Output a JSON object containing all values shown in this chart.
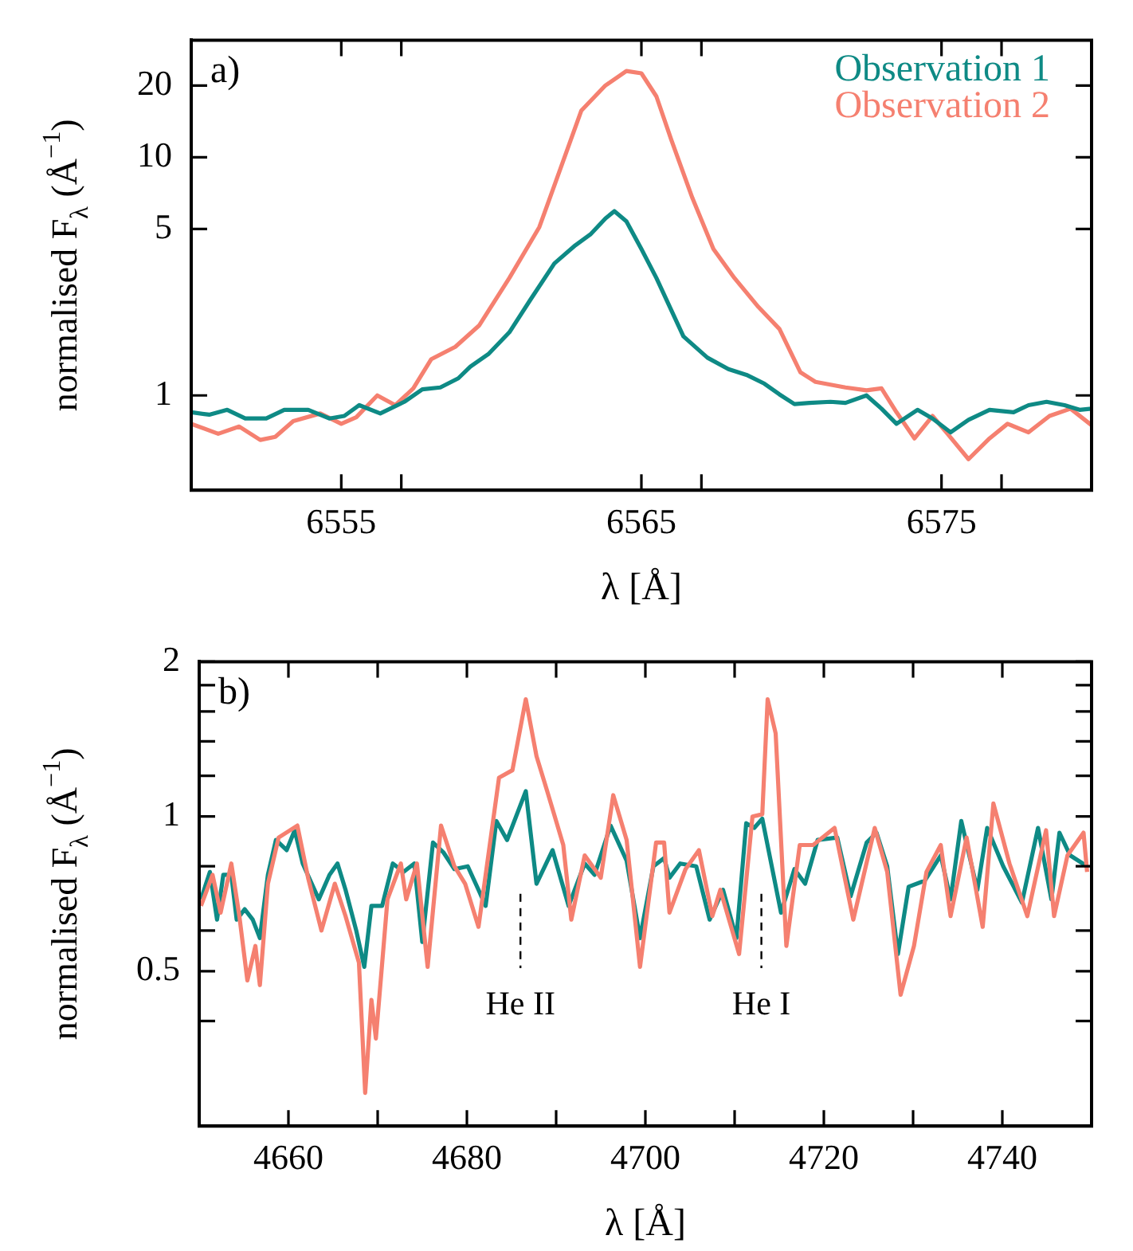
{
  "chart_data": [
    {
      "type": "line",
      "xlabel": "λ [Å]",
      "ylabel": "normalised F$_{λ}$ (Å$^{−1}$)",
      "log": true,
      "legend": "top right",
      "annotations": [
        "a)"
      ],
      "xlim": [
        6550,
        6580
      ],
      "xticks": [
        6555,
        {
          "value": 6557,
          "label": null
        },
        6565,
        {
          "value": 6567,
          "label": null
        },
        6575,
        {
          "value": 6577,
          "label": null
        }
      ],
      "ylim": [
        0.4,
        31
      ],
      "yticks": [
        1,
        5,
        10,
        20
      ],
      "series": [
        {
          "name": "Observation 1",
          "color": "#0e8a85",
          "x": [
            6550,
            6550.6,
            6551.2,
            6551.8,
            6552.5,
            6553.1,
            6553.9,
            6554.6,
            6555.1,
            6555.6,
            6556.3,
            6557.1,
            6557.7,
            6558.3,
            6558.9,
            6559.3,
            6559.9,
            6560.6,
            6561.3,
            6562.1,
            6562.8,
            6563.3,
            6563.8,
            6564.1,
            6564.5,
            6565,
            6565.5,
            6566.4,
            6567.2,
            6567.9,
            6568.5,
            6569.1,
            6569.6,
            6570.1,
            6570.6,
            6571.3,
            6571.8,
            6572.5,
            6573,
            6573.5,
            6574.2,
            6574.7,
            6575.3,
            6575.9,
            6576.6,
            6577.4,
            6577.9,
            6578.5,
            6579.1,
            6579.6,
            6580
          ],
          "values": [
            0.85,
            0.83,
            0.87,
            0.8,
            0.8,
            0.87,
            0.87,
            0.8,
            0.82,
            0.91,
            0.84,
            0.94,
            1.06,
            1.08,
            1.18,
            1.32,
            1.49,
            1.84,
            2.52,
            3.58,
            4.27,
            4.74,
            5.53,
            5.94,
            5.38,
            4.12,
            3.11,
            1.77,
            1.44,
            1.29,
            1.22,
            1.12,
            1.01,
            0.92,
            0.93,
            0.94,
            0.93,
            1.0,
            0.88,
            0.76,
            0.87,
            0.8,
            0.7,
            0.79,
            0.87,
            0.85,
            0.91,
            0.94,
            0.91,
            0.87,
            0.88
          ]
        },
        {
          "name": "Observation 2",
          "color": "#f58070",
          "x": [
            6550,
            6550.9,
            6551.6,
            6552.3,
            6552.8,
            6553.4,
            6554.3,
            6555,
            6555.5,
            6556.2,
            6556.8,
            6557.4,
            6558,
            6558.8,
            6559.6,
            6560.6,
            6561.6,
            6562.3,
            6563,
            6563.8,
            6564.5,
            6565,
            6565.5,
            6566,
            6566.7,
            6567.4,
            6568.1,
            6568.9,
            6569.6,
            6570.3,
            6570.8,
            6571.8,
            6572.5,
            6573,
            6573.5,
            6574.1,
            6574.7,
            6575.2,
            6575.9,
            6576.6,
            6577.2,
            6577.9,
            6578.6,
            6579.3,
            6580
          ],
          "values": [
            0.76,
            0.69,
            0.74,
            0.65,
            0.67,
            0.78,
            0.84,
            0.76,
            0.81,
            1.0,
            0.91,
            1.07,
            1.42,
            1.6,
            1.97,
            3.11,
            5.09,
            8.93,
            15.7,
            20,
            23,
            22.5,
            18,
            11.8,
            6.74,
            4.12,
            3.11,
            2.35,
            1.9,
            1.25,
            1.14,
            1.08,
            1.05,
            1.07,
            0.85,
            0.66,
            0.82,
            0.69,
            0.54,
            0.66,
            0.76,
            0.7,
            0.82,
            0.88,
            0.75
          ]
        }
      ]
    },
    {
      "type": "line",
      "xlabel": "λ [Å]",
      "ylabel": "normalised F$_{λ}$ (Å$^{−1}$)",
      "log": true,
      "annotations": [
        "b)"
      ],
      "ref_lines": [
        {
          "axis": "x",
          "value": 4686,
          "label": "He II",
          "line_style": "dashed"
        },
        {
          "axis": "x",
          "value": 4713,
          "label": "He I",
          "line_style": "dashed"
        }
      ],
      "xlim": [
        4650,
        4750
      ],
      "xticks": [
        4660,
        {
          "value": 4670,
          "label": null
        },
        4680,
        {
          "value": 4690,
          "label": null
        },
        4700,
        {
          "value": 4710,
          "label": null
        },
        4720,
        {
          "value": 4730,
          "label": null
        },
        4740
      ],
      "ylim": [
        0.25,
        2
      ],
      "yticks": [
        {
          "value": 0.4,
          "label": null
        },
        0.5,
        {
          "value": 0.6,
          "label": null
        },
        {
          "value": 0.8,
          "label": null
        },
        1,
        {
          "value": 1.2,
          "label": null
        },
        {
          "value": 1.4,
          "label": null
        },
        {
          "value": 1.6,
          "label": null
        },
        {
          "value": 1.8,
          "label": null
        },
        2
      ],
      "series": [
        {
          "color": "#f58070",
          "x": [
            4650.2,
            4651.5,
            4652.4,
            4653.6,
            4654.5,
            4655.4,
            4656.3,
            4656.8,
            4657.7,
            4658.9,
            4661,
            4662.2,
            4663.7,
            4665.2,
            4666.4,
            4667.9,
            4668.6,
            4669.3,
            4669.8,
            4671.1,
            4672.6,
            4673.2,
            4674.4,
            4675.6,
            4677.1,
            4678.6,
            4679.8,
            4681.3,
            4683.6,
            4685.1,
            4686.6,
            4687.8,
            4689,
            4690.8,
            4691.7,
            4693.2,
            4695,
            4696.4,
            4697.9,
            4699.4,
            4701.2,
            4702.1,
            4702.7,
            4704.5,
            4706,
            4707.5,
            4708.4,
            4710.5,
            4712,
            4713.1,
            4713.7,
            4714.6,
            4715.8,
            4717.3,
            4718.8,
            4721.2,
            4723.3,
            4725.7,
            4727.1,
            4728.6,
            4730.1,
            4731.5,
            4733.1,
            4734.2,
            4736,
            4737.8,
            4739,
            4740.8,
            4742.8,
            4744.9,
            4745.8,
            4747.3,
            4749.1,
            4749.5
          ],
          "values": [
            0.67,
            0.77,
            0.65,
            0.81,
            0.64,
            0.48,
            0.56,
            0.47,
            0.74,
            0.91,
            0.96,
            0.76,
            0.6,
            0.74,
            0.64,
            0.52,
            0.29,
            0.44,
            0.37,
            0.69,
            0.81,
            0.69,
            0.81,
            0.51,
            0.96,
            0.8,
            0.74,
            0.61,
            1.19,
            1.23,
            1.69,
            1.31,
            1.12,
            0.88,
            0.63,
            0.84,
            0.76,
            1.1,
            0.9,
            0.51,
            0.89,
            0.89,
            0.65,
            0.79,
            0.86,
            0.64,
            0.72,
            0.54,
            1.0,
            1.01,
            1.69,
            1.45,
            0.56,
            0.88,
            0.88,
            0.95,
            0.63,
            0.95,
            0.78,
            0.45,
            0.56,
            0.78,
            0.88,
            0.64,
            0.91,
            0.61,
            1.06,
            0.81,
            0.64,
            0.94,
            0.64,
            0.84,
            0.93,
            0.78
          ]
        },
        {
          "color": "#0e8a85",
          "x": [
            4650.2,
            4651.2,
            4652,
            4652.7,
            4653.6,
            4654.2,
            4655.1,
            4656,
            4656.8,
            4657.7,
            4658.6,
            4659.8,
            4660.7,
            4661.6,
            4663.4,
            4664.6,
            4665.5,
            4666.4,
            4667.6,
            4668.5,
            4669.3,
            4670.5,
            4671.7,
            4672.9,
            4674.1,
            4675,
            4676.2,
            4677.4,
            4678.6,
            4680.1,
            4681.3,
            4682.1,
            4683.3,
            4684.5,
            4686.6,
            4687.8,
            4689.6,
            4691.4,
            4693.2,
            4694.3,
            4696.1,
            4697.9,
            4699.4,
            4700.9,
            4702.1,
            4702.7,
            4703.9,
            4705.7,
            4707.2,
            4708.7,
            4710.2,
            4711.3,
            4712.2,
            4713.1,
            4715.2,
            4716.7,
            4717.9,
            4719.3,
            4721.5,
            4723,
            4724.8,
            4725.9,
            4727.1,
            4728.3,
            4729.5,
            4731.3,
            4733.1,
            4734.2,
            4735.4,
            4737.2,
            4738.3,
            4740.1,
            4742.2,
            4744,
            4745.5,
            4746.4,
            4747.6,
            4749.5
          ],
          "values": [
            0.69,
            0.78,
            0.63,
            0.77,
            0.77,
            0.63,
            0.66,
            0.63,
            0.58,
            0.77,
            0.9,
            0.86,
            0.94,
            0.81,
            0.69,
            0.77,
            0.81,
            0.72,
            0.6,
            0.51,
            0.67,
            0.67,
            0.81,
            0.78,
            0.81,
            0.57,
            0.89,
            0.85,
            0.79,
            0.8,
            0.72,
            0.67,
            0.98,
            0.9,
            1.12,
            0.74,
            0.86,
            0.67,
            0.81,
            0.77,
            0.96,
            0.82,
            0.58,
            0.8,
            0.83,
            0.76,
            0.81,
            0.8,
            0.63,
            0.72,
            0.58,
            0.97,
            0.95,
            0.99,
            0.65,
            0.79,
            0.74,
            0.9,
            0.91,
            0.7,
            0.89,
            0.93,
            0.8,
            0.54,
            0.73,
            0.75,
            0.84,
            0.69,
            0.98,
            0.72,
            0.95,
            0.8,
            0.68,
            0.95,
            0.69,
            0.93,
            0.84,
            0.8
          ]
        }
      ]
    }
  ]
}
